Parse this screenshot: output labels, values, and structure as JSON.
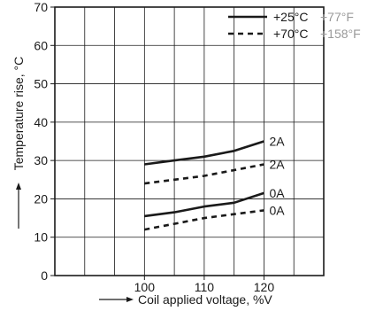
{
  "chart_data": {
    "type": "line",
    "title": "",
    "xlabel": "Coil applied voltage, %V",
    "ylabel": "Temperature rise, °C",
    "xlim": [
      85,
      130
    ],
    "ylim": [
      0,
      70
    ],
    "x_ticks": [
      100,
      110,
      120
    ],
    "y_ticks": [
      0,
      10,
      20,
      30,
      40,
      50,
      60,
      70
    ],
    "grid": true,
    "legend_position": "top-right",
    "legend": [
      {
        "label": "+25°C",
        "note": "+77°F",
        "line_style": "solid"
      },
      {
        "label": "+70°C",
        "note": "+158°F",
        "line_style": "dashed"
      }
    ],
    "series": [
      {
        "label": "2A",
        "line_style": "solid",
        "x": [
          100,
          105,
          110,
          115,
          120
        ],
        "y": [
          29,
          30,
          31,
          32.5,
          35
        ]
      },
      {
        "label": "2A",
        "line_style": "dashed",
        "x": [
          100,
          105,
          110,
          115,
          120
        ],
        "y": [
          24,
          25,
          26,
          27.5,
          29
        ]
      },
      {
        "label": "0A",
        "line_style": "solid",
        "x": [
          100,
          105,
          110,
          115,
          120
        ],
        "y": [
          15.5,
          16.5,
          18,
          19,
          21.5
        ]
      },
      {
        "label": "0A",
        "line_style": "dashed",
        "x": [
          100,
          105,
          110,
          115,
          120
        ],
        "y": [
          12,
          13.5,
          15,
          16,
          17
        ]
      }
    ],
    "colors": {
      "lines": "#1a1a1a",
      "grid": "#1a1a1a",
      "legend_note": "#9a9a9a"
    }
  }
}
